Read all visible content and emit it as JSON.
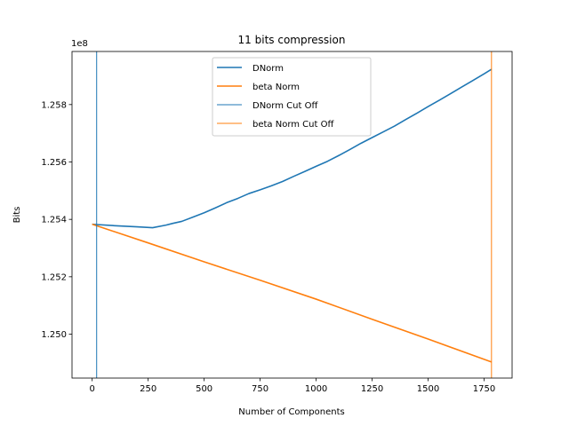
{
  "chart_data": {
    "type": "line",
    "title": "11 bits compression",
    "xlabel": "Number of Components",
    "ylabel": "Bits",
    "offset_label": "1e8",
    "xlim": [
      -90,
      1875
    ],
    "ylim": [
      1.24847,
      1.25985
    ],
    "xticks": [
      0,
      250,
      500,
      750,
      1000,
      1250,
      1500,
      1750
    ],
    "xtick_labels": [
      "0",
      "250",
      "500",
      "750",
      "1000",
      "1250",
      "1500",
      "1750"
    ],
    "yticks": [
      1.25,
      1.252,
      1.254,
      1.256,
      1.258
    ],
    "ytick_labels": [
      "1.250",
      "1.252",
      "1.254",
      "1.256",
      "1.258"
    ],
    "grid": false,
    "legend_position": "top-center",
    "series": [
      {
        "name": "DNorm",
        "kind": "line",
        "color": "#1f77b4",
        "x": [
          0,
          20,
          100,
          200,
          270,
          330,
          360,
          400,
          450,
          500,
          550,
          600,
          650,
          700,
          750,
          800,
          850,
          900,
          950,
          1000,
          1050,
          1100,
          1150,
          1200,
          1250,
          1300,
          1350,
          1400,
          1450,
          1500,
          1550,
          1600,
          1650,
          1700,
          1750,
          1783
        ],
        "y": [
          1.25383,
          1.25382,
          1.25378,
          1.25374,
          1.25371,
          1.2538,
          1.25386,
          1.25393,
          1.25408,
          1.25423,
          1.2544,
          1.25458,
          1.25473,
          1.2549,
          1.25503,
          1.25517,
          1.25532,
          1.2555,
          1.25567,
          1.25585,
          1.25602,
          1.25622,
          1.25643,
          1.25665,
          1.25685,
          1.25705,
          1.25725,
          1.25748,
          1.2577,
          1.25793,
          1.25815,
          1.25838,
          1.25861,
          1.25884,
          1.25907,
          1.25923
        ]
      },
      {
        "name": "beta Norm",
        "kind": "line",
        "color": "#ff7f0e",
        "x": [
          0,
          250,
          500,
          750,
          1000,
          1250,
          1500,
          1783
        ],
        "y": [
          1.25383,
          1.25318,
          1.25252,
          1.25188,
          1.25122,
          1.25052,
          1.24983,
          1.24903
        ]
      },
      {
        "name": "DNorm Cut Off",
        "kind": "vline",
        "color": "#1f77b4",
        "x": 20
      },
      {
        "name": "beta Norm Cut Off",
        "kind": "vline",
        "color": "#ff7f0e",
        "x": 1783
      }
    ]
  }
}
